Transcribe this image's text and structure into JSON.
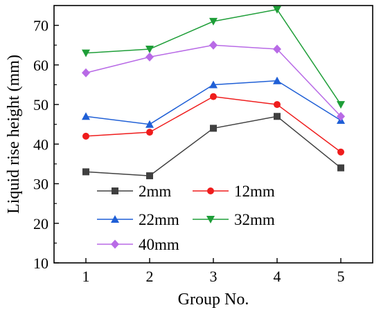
{
  "chart_data": {
    "type": "line",
    "title": "",
    "xlabel": "Group No.",
    "ylabel": "Liquid rise height (mm)",
    "categories": [
      "1",
      "2",
      "3",
      "4",
      "5"
    ],
    "x": [
      1,
      2,
      3,
      4,
      5
    ],
    "xlim": [
      0.5,
      5.5
    ],
    "ylim": [
      10,
      75
    ],
    "xticks": [
      1,
      2,
      3,
      4,
      5
    ],
    "yticks": [
      10,
      20,
      30,
      40,
      50,
      60,
      70
    ],
    "grid": false,
    "legend_position": "bottom-left",
    "series": [
      {
        "name": "2mm",
        "color": "#404040",
        "marker": "square",
        "values": [
          33,
          32,
          44,
          47,
          34
        ]
      },
      {
        "name": "12mm",
        "color": "#ef1c1c",
        "marker": "circle",
        "values": [
          42,
          43,
          52,
          50,
          38
        ]
      },
      {
        "name": "22mm",
        "color": "#1f5fd6",
        "marker": "triangle-up",
        "values": [
          47,
          45,
          55,
          56,
          46
        ]
      },
      {
        "name": "32mm",
        "color": "#1e9e38",
        "marker": "triangle-down",
        "values": [
          63,
          64,
          71,
          74,
          50
        ]
      },
      {
        "name": "40mm",
        "color": "#b86ae6",
        "marker": "diamond",
        "values": [
          58,
          62,
          65,
          64,
          47
        ]
      }
    ]
  }
}
